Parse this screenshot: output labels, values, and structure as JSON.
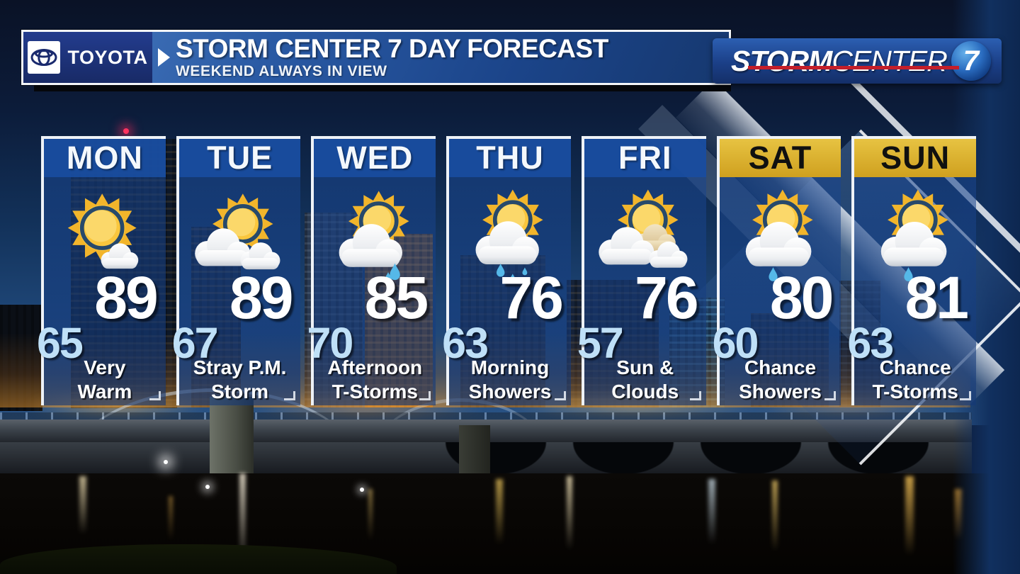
{
  "header": {
    "sponsor_logo": "TOYOTA",
    "title": "STORM CENTER 7 DAY FORECAST",
    "subtitle": "WEEKEND ALWAYS IN VIEW"
  },
  "brand": {
    "part1": "STORM",
    "part2": "CENTER",
    "number": "7"
  },
  "forecast_days": [
    {
      "name": "MON",
      "icon": "mostly-sunny",
      "high": "89",
      "low": "65",
      "condition": "Very\nWarm",
      "weekend": false
    },
    {
      "name": "TUE",
      "icon": "partly-cloudy",
      "high": "89",
      "low": "67",
      "condition": "Stray P.M.\nStorm",
      "weekend": false
    },
    {
      "name": "WED",
      "icon": "sun-cloud-rain",
      "high": "85",
      "low": "70",
      "condition": "Afternoon\nT-Storms",
      "weekend": false
    },
    {
      "name": "THU",
      "icon": "sun-cloud-showers",
      "high": "76",
      "low": "63",
      "condition": "Morning\nShowers",
      "weekend": false
    },
    {
      "name": "FRI",
      "icon": "sun-and-clouds",
      "high": "76",
      "low": "57",
      "condition": "Sun &\nClouds",
      "weekend": false
    },
    {
      "name": "SAT",
      "icon": "sun-cloud-shower",
      "high": "80",
      "low": "60",
      "condition": "Chance\nShowers",
      "weekend": true
    },
    {
      "name": "SUN",
      "icon": "sun-cloud-shower",
      "high": "81",
      "low": "63",
      "condition": "Chance\nT-Storms",
      "weekend": true
    }
  ],
  "colors": {
    "header_blue": "#1b4489",
    "panel_blue": "#194da0",
    "weekend_gold": "#d9ab25",
    "low_temp_blue": "#bfe0f7",
    "brand_red": "#c41e2a",
    "sun_yellow": "#f7c63d",
    "rain_blue": "#55b8e8"
  }
}
